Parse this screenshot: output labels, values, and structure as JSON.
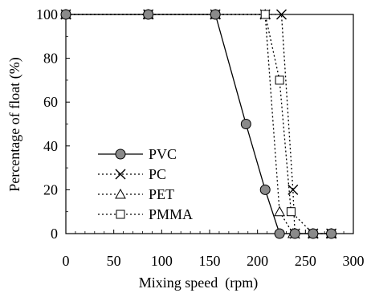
{
  "chart_data": {
    "type": "line",
    "xlabel": "Mixing speed (rpm)",
    "ylabel": "Percentage of float (%)",
    "xlim": [
      0,
      300
    ],
    "ylim": [
      0,
      100
    ],
    "x_ticks": [
      "0",
      "50",
      "100",
      "150",
      "200",
      "250",
      "300"
    ],
    "y_ticks": [
      "0",
      "20",
      "40",
      "60",
      "80",
      "100"
    ],
    "grid": false,
    "legend_placement": "lower-left",
    "series": [
      {
        "name": "PVC",
        "marker": "filled-circle",
        "line_style": "solid",
        "points": [
          [
            0,
            100
          ],
          [
            86,
            100
          ],
          [
            156,
            100
          ],
          [
            188,
            50
          ],
          [
            208,
            20
          ],
          [
            223,
            0
          ],
          [
            239,
            0
          ],
          [
            258,
            0
          ],
          [
            277,
            0
          ]
        ]
      },
      {
        "name": "PC",
        "marker": "x",
        "line_style": "dotted",
        "points": [
          [
            0,
            100
          ],
          [
            86,
            100
          ],
          [
            156,
            100
          ],
          [
            208,
            100
          ],
          [
            225,
            100
          ],
          [
            237,
            20
          ],
          [
            239,
            0
          ],
          [
            258,
            0
          ],
          [
            277,
            0
          ]
        ]
      },
      {
        "name": "PET",
        "marker": "open-triangle",
        "line_style": "dotted",
        "points": [
          [
            0,
            100
          ],
          [
            86,
            100
          ],
          [
            156,
            100
          ],
          [
            208,
            100
          ],
          [
            223,
            10
          ],
          [
            237,
            0
          ],
          [
            258,
            0
          ],
          [
            277,
            0
          ]
        ]
      },
      {
        "name": "PMMA",
        "marker": "open-square",
        "line_style": "dotted",
        "points": [
          [
            0,
            100
          ],
          [
            86,
            100
          ],
          [
            156,
            100
          ],
          [
            208,
            100
          ],
          [
            223,
            70
          ],
          [
            235,
            10
          ],
          [
            258,
            0
          ],
          [
            277,
            0
          ]
        ]
      }
    ]
  }
}
